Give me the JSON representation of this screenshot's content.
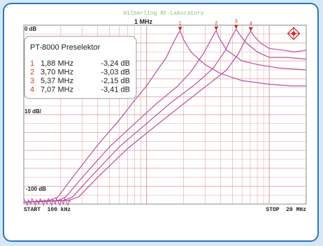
{
  "chart_data": {
    "type": "line",
    "title": "Hilberling RF-Laboratory",
    "top_left_label": "0 dB",
    "scale_label": "10 dB/",
    "bottom_level_label": "-100 dB",
    "center_label": "1 MHz",
    "x_start_label": "START  100 kHz",
    "x_stop_label": "STOP  20 MHz",
    "x_scale": "log",
    "xlim_mhz": [
      0.1,
      20
    ],
    "ylim_db": [
      -100,
      0
    ],
    "grid": true,
    "legend_title": "PT-8000 Preselektor",
    "legend": [
      {
        "num": "1",
        "freq": "1,88 MHz",
        "level": "-3,24 dB"
      },
      {
        "num": "2",
        "freq": "3,70 MHz",
        "level": "-3,03 dB"
      },
      {
        "num": "3",
        "freq": "5,37 MHz",
        "level": "-2,15 dB"
      },
      {
        "num": "4",
        "freq": "7,07 MHz",
        "level": "-3,41 dB"
      }
    ],
    "markers": [
      {
        "label": "1",
        "x_mhz": 1.88,
        "y_db": -3.24
      },
      {
        "label": "2",
        "x_mhz": 3.7,
        "y_db": -3.03
      },
      {
        "label": "3",
        "x_mhz": 5.37,
        "y_db": -2.15
      },
      {
        "label": "4",
        "x_mhz": 7.07,
        "y_db": -3.41
      }
    ],
    "series": [
      {
        "values": [
          [
            0.1,
            -99
          ],
          [
            0.16,
            -98
          ],
          [
            0.19,
            -96
          ],
          [
            0.25,
            -85
          ],
          [
            0.4,
            -67
          ],
          [
            0.6,
            -53
          ],
          [
            0.8,
            -42
          ],
          [
            1.0,
            -34
          ],
          [
            1.2,
            -26
          ],
          [
            1.45,
            -18
          ],
          [
            1.65,
            -10
          ],
          [
            1.8,
            -5
          ],
          [
            1.88,
            -3.24
          ],
          [
            2.0,
            -8
          ],
          [
            2.3,
            -15
          ],
          [
            3.0,
            -22
          ],
          [
            4.0,
            -27
          ],
          [
            6.0,
            -31
          ],
          [
            10.0,
            -33
          ],
          [
            15.0,
            -34
          ],
          [
            20.0,
            -34
          ]
        ]
      },
      {
        "values": [
          [
            0.1,
            -99
          ],
          [
            0.19,
            -98
          ],
          [
            0.22,
            -96
          ],
          [
            0.3,
            -85
          ],
          [
            0.5,
            -68
          ],
          [
            0.8,
            -55
          ],
          [
            1.2,
            -44
          ],
          [
            1.8,
            -34
          ],
          [
            2.3,
            -26
          ],
          [
            2.9,
            -16
          ],
          [
            3.3,
            -9
          ],
          [
            3.55,
            -5
          ],
          [
            3.7,
            -3.03
          ],
          [
            3.9,
            -7
          ],
          [
            4.5,
            -14
          ],
          [
            6.0,
            -20
          ],
          [
            8.0,
            -22
          ],
          [
            12.0,
            -24
          ],
          [
            20.0,
            -25
          ]
        ]
      },
      {
        "values": [
          [
            0.1,
            -99
          ],
          [
            0.21,
            -98
          ],
          [
            0.25,
            -96
          ],
          [
            0.35,
            -85
          ],
          [
            0.6,
            -68
          ],
          [
            1.0,
            -55
          ],
          [
            1.6,
            -43
          ],
          [
            2.5,
            -33
          ],
          [
            3.5,
            -24
          ],
          [
            4.4,
            -14
          ],
          [
            4.9,
            -7
          ],
          [
            5.2,
            -4
          ],
          [
            5.37,
            -2.15
          ],
          [
            5.7,
            -5
          ],
          [
            6.5,
            -10
          ],
          [
            8.0,
            -15
          ],
          [
            10.0,
            -18
          ],
          [
            14.0,
            -18
          ],
          [
            20.0,
            -19
          ]
        ]
      },
      {
        "values": [
          [
            0.1,
            -99
          ],
          [
            0.23,
            -98
          ],
          [
            0.28,
            -96
          ],
          [
            0.4,
            -85
          ],
          [
            0.7,
            -69
          ],
          [
            1.2,
            -56
          ],
          [
            2.0,
            -44
          ],
          [
            3.2,
            -33
          ],
          [
            4.5,
            -25
          ],
          [
            5.6,
            -16
          ],
          [
            6.3,
            -9
          ],
          [
            6.8,
            -5
          ],
          [
            7.07,
            -3.41
          ],
          [
            7.5,
            -6
          ],
          [
            8.5,
            -10
          ],
          [
            10.0,
            -13
          ],
          [
            13.0,
            -14
          ],
          [
            16.0,
            -15
          ],
          [
            20.0,
            -14
          ]
        ]
      }
    ],
    "colors": {
      "trace": "#b8509c",
      "marker": "#cc2a2a",
      "grid": "#e3a9a9",
      "legend_num": "#d0442c",
      "frame": "#2f74c0",
      "background": "#d6e8f5"
    }
  }
}
